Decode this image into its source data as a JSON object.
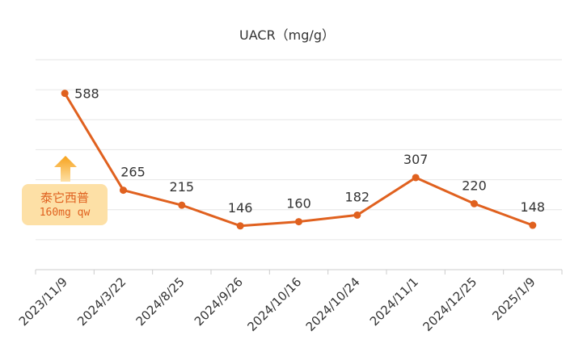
{
  "chart_data": {
    "type": "line",
    "title": "UACR（mg/g）",
    "xlabel": "",
    "ylabel": "",
    "categories": [
      "2023/11/9",
      "2024/3/22",
      "2024/8/25",
      "2024/9/26",
      "2024/10/16",
      "2024/10/24",
      "2024/11/1",
      "2024/12/25",
      "2025/1/9"
    ],
    "series": [
      {
        "values": [
          588,
          265,
          215,
          146,
          160,
          182,
          307,
          220,
          148
        ]
      }
    ],
    "ylim": [
      0,
      700
    ],
    "grid": true,
    "show_data_labels": true,
    "line_color": "#e0611f"
  },
  "annotation": {
    "drug": "泰它西普",
    "dose": "160mg qw",
    "background_color": "#fde0a6",
    "arrow_color": "#f7a21b",
    "icon": "up-arrow-icon"
  }
}
